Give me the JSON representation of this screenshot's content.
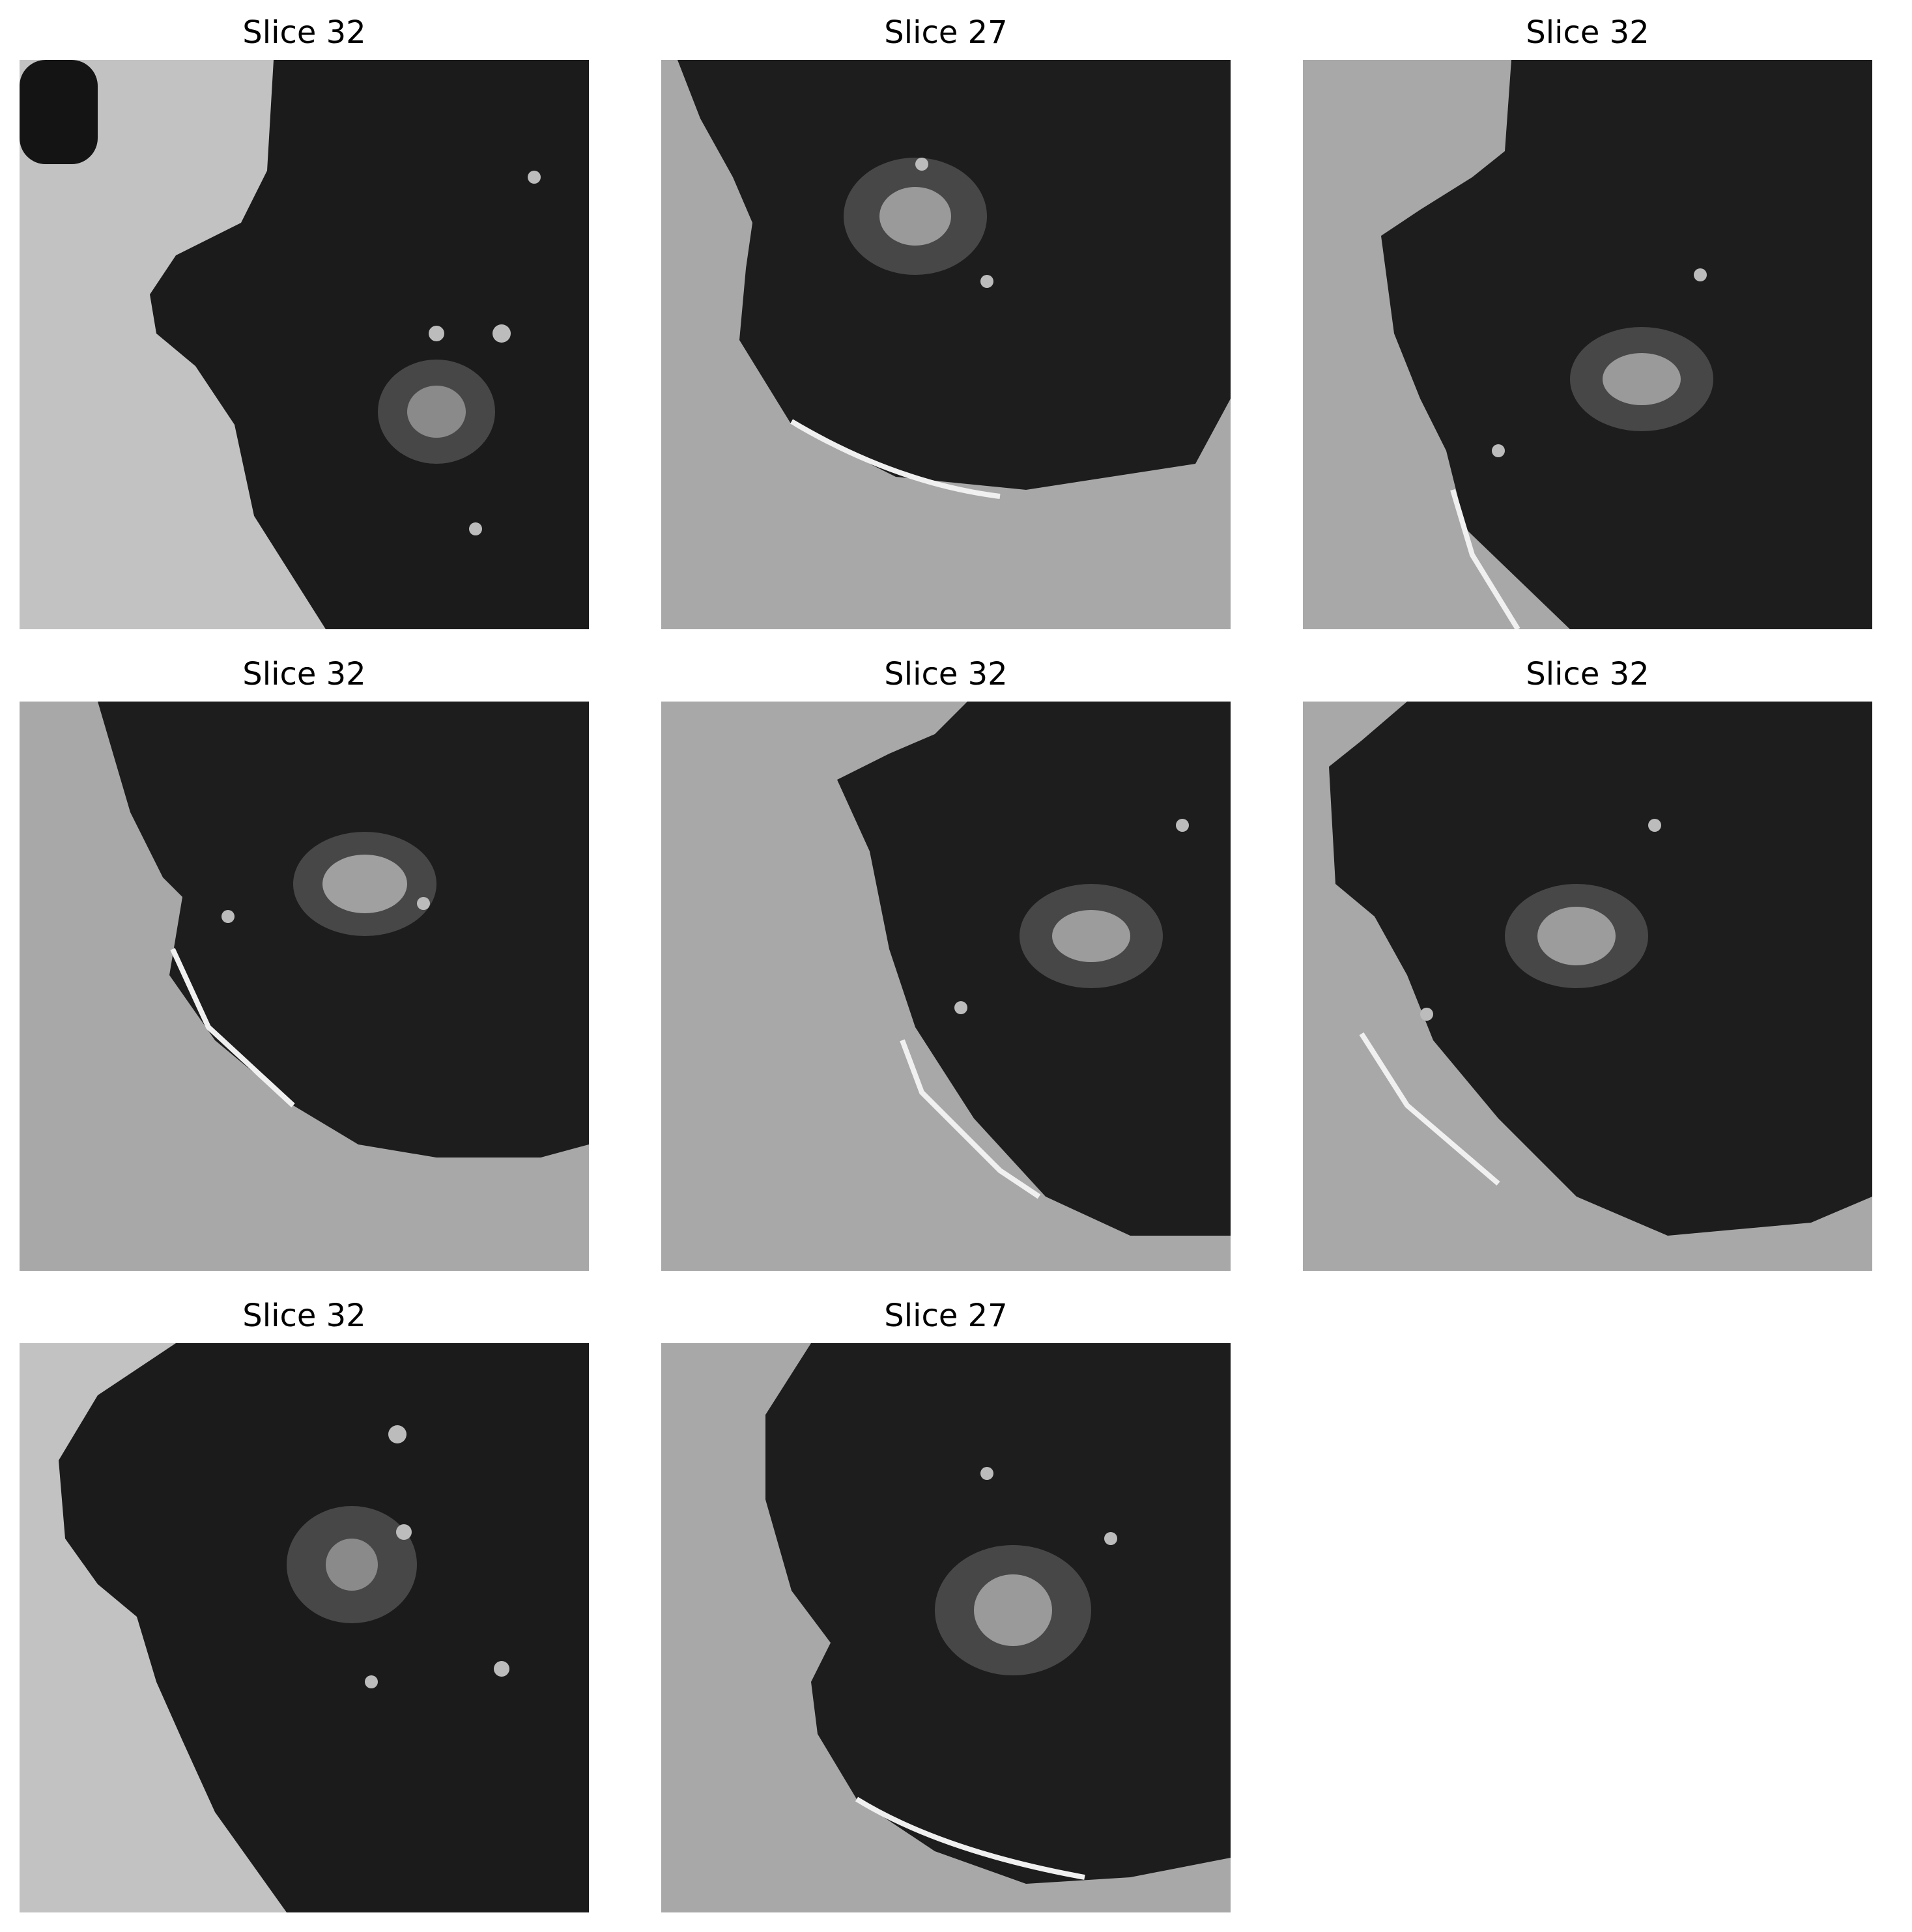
{
  "figure": {
    "panels": [
      {
        "title": "Slice 32",
        "background_tone": "#c2c2c2",
        "lung_tone": "#1b1b1b",
        "nodule_tone": "#8a8a8a"
      },
      {
        "title": "Slice 27",
        "background_tone": "#a8a8a8",
        "lung_tone": "#1d1d1d",
        "nodule_tone": "#9a9a9a"
      },
      {
        "title": "Slice 32",
        "background_tone": "#a8a8a8",
        "lung_tone": "#1d1d1d",
        "nodule_tone": "#9a9a9a"
      },
      {
        "title": "Slice 32",
        "background_tone": "#a8a8a8",
        "lung_tone": "#1d1d1d",
        "nodule_tone": "#a0a0a0"
      },
      {
        "title": "Slice 32",
        "background_tone": "#a8a8a8",
        "lung_tone": "#1d1d1d",
        "nodule_tone": "#9c9c9c"
      },
      {
        "title": "Slice 32",
        "background_tone": "#a8a8a8",
        "lung_tone": "#1d1d1d",
        "nodule_tone": "#9c9c9c"
      },
      {
        "title": "Slice 32",
        "background_tone": "#c2c2c2",
        "lung_tone": "#1b1b1b",
        "nodule_tone": "#8a8a8a"
      },
      {
        "title": "Slice 27",
        "background_tone": "#a8a8a8",
        "lung_tone": "#1d1d1d",
        "nodule_tone": "#9a9a9a"
      }
    ]
  }
}
